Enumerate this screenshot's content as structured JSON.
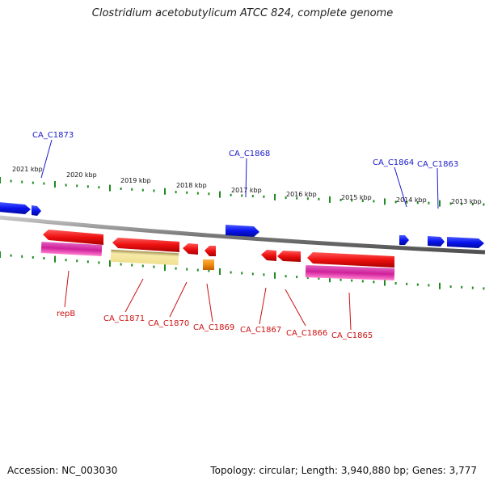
{
  "title": "Clostridium acetobutylicum ATCC 824, complete genome",
  "footer": {
    "accession": "Accession: NC_003030",
    "summary": "Topology: circular; Length: 3,940,880 bp; Genes: 3,777"
  },
  "colors": {
    "backbone": "#8a8a8a",
    "tick": "#1f8a1f",
    "forward_gene": "#0a14ee",
    "reverse_gene": "#ee1010",
    "forward_label": "#1a1acc",
    "reverse_label": "#cc1111",
    "feature_magenta": "#d0209a",
    "feature_yellow": "#f0e49a",
    "feature_orange": "#f08a10"
  },
  "scale": {
    "tick_labels": [
      "2021 kbp",
      "2020 kbp",
      "2019 kbp",
      "2018 kbp",
      "2017 kbp",
      "2016 kbp",
      "2015 kbp",
      "2014 kbp",
      "2013 kbp"
    ]
  },
  "genes": {
    "forward": [
      {
        "id": "fw1",
        "label": ""
      },
      {
        "id": "fw2",
        "label": ""
      },
      {
        "id": "fw3",
        "label": "CA_C1868"
      },
      {
        "id": "fw4",
        "label": "CA_C1864"
      },
      {
        "id": "fw5",
        "label": "CA_C1863"
      },
      {
        "id": "fw6",
        "label": ""
      }
    ],
    "forward_labels": [
      {
        "text": "CA_C1873"
      },
      {
        "text": "CA_C1868"
      },
      {
        "text": "CA_C1864"
      },
      {
        "text": "CA_C1863"
      }
    ],
    "reverse_labels": [
      {
        "text": "repB"
      },
      {
        "text": "CA_C1871"
      },
      {
        "text": "CA_C1870"
      },
      {
        "text": "CA_C1869"
      },
      {
        "text": "CA_C1867"
      },
      {
        "text": "CA_C1866"
      },
      {
        "text": "CA_C1865"
      }
    ]
  }
}
